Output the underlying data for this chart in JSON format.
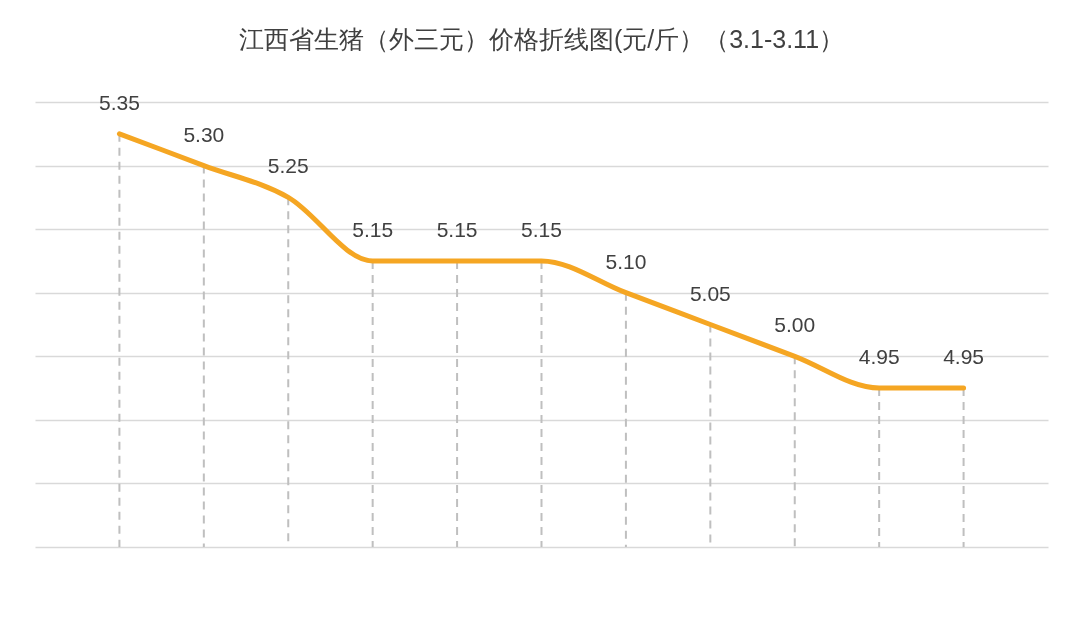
{
  "chart_data": {
    "type": "line",
    "title": "江西省生猪（外三元）价格折线图(元/斤）（3.1-3.11）",
    "categories": [
      null,
      null,
      null,
      null,
      null,
      null,
      null,
      null,
      null,
      null,
      null
    ],
    "series": [
      {
        "color": "#f5a623",
        "values": [
          5.35,
          5.3,
          5.25,
          5.15,
          5.15,
          5.15,
          5.1,
          5.05,
          5.0,
          4.95,
          4.95
        ],
        "value_labels": [
          "5.35",
          "5.30",
          "5.25",
          "5.15",
          "5.15",
          "5.15",
          "5.10",
          "5.05",
          "5.00",
          "4.95",
          "4.95"
        ]
      }
    ],
    "ylim": [
      4.7,
      5.4
    ],
    "yticks": [
      {
        "value": 4.7,
        "label": null
      },
      {
        "value": 4.8,
        "label": null
      },
      {
        "value": 4.9,
        "label": null
      },
      {
        "value": 5.0,
        "label": null
      },
      {
        "value": 5.1,
        "label": null
      },
      {
        "value": 5.2,
        "label": null
      },
      {
        "value": 5.3,
        "label": null
      },
      {
        "value": 5.4,
        "label": null
      }
    ],
    "grid": true,
    "marker": "none",
    "line_style": "solid"
  }
}
